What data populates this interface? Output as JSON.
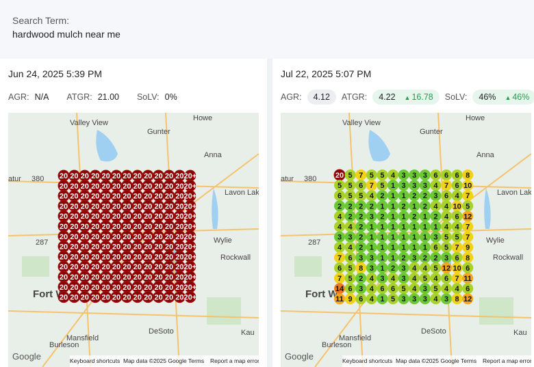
{
  "search": {
    "label": "Search Term:",
    "term": "hardwood mulch near me"
  },
  "panels": [
    {
      "date": "Jun 24, 2025 5:39 PM",
      "metrics": {
        "agr_label": "AGR:",
        "agr": "N/A",
        "atgr_label": "ATGR:",
        "atgr": "21.00",
        "solv_label": "SoLV:",
        "solv": "0%"
      },
      "map_labels": [
        "Valley View",
        "Gunter",
        "Howe",
        "Anna",
        "atur",
        "380",
        "Wylie",
        "Rockwall",
        "Fort W",
        "287",
        "Burleson",
        "Mansfield",
        "DeSoto",
        "Kau",
        "Lavon Lake"
      ],
      "footer": {
        "google": "Google",
        "shortcuts": "Keyboard shortcuts",
        "mapdata": "Map data ©2025 Google",
        "terms": "Terms",
        "report": "Report a map error"
      },
      "grid": [
        [
          20,
          20,
          20,
          20,
          20,
          20,
          20,
          20,
          20,
          20,
          20,
          20,
          "20+"
        ],
        [
          20,
          20,
          20,
          20,
          20,
          20,
          20,
          20,
          20,
          20,
          20,
          20,
          "20+"
        ],
        [
          20,
          20,
          20,
          20,
          20,
          20,
          20,
          20,
          20,
          20,
          20,
          20,
          "20+"
        ],
        [
          20,
          20,
          20,
          20,
          20,
          20,
          20,
          20,
          20,
          20,
          20,
          20,
          "20+"
        ],
        [
          20,
          20,
          20,
          20,
          20,
          20,
          20,
          20,
          20,
          20,
          20,
          20,
          "20+"
        ],
        [
          20,
          20,
          20,
          20,
          20,
          20,
          20,
          20,
          20,
          20,
          20,
          20,
          "20+"
        ],
        [
          20,
          20,
          20,
          20,
          20,
          20,
          20,
          20,
          20,
          20,
          20,
          20,
          "20+"
        ],
        [
          20,
          20,
          20,
          20,
          20,
          20,
          20,
          20,
          20,
          20,
          20,
          20,
          "20+"
        ],
        [
          20,
          20,
          20,
          20,
          20,
          20,
          20,
          20,
          20,
          20,
          20,
          20,
          "20+"
        ],
        [
          20,
          20,
          20,
          20,
          20,
          20,
          20,
          20,
          20,
          20,
          20,
          20,
          "20+"
        ],
        [
          20,
          20,
          20,
          20,
          20,
          20,
          20,
          20,
          20,
          20,
          20,
          20,
          "20+"
        ],
        [
          20,
          20,
          20,
          20,
          20,
          20,
          20,
          20,
          20,
          20,
          20,
          20,
          "20+"
        ],
        [
          20,
          20,
          20,
          20,
          20,
          20,
          20,
          20,
          20,
          20,
          20,
          20,
          "20+"
        ]
      ]
    },
    {
      "date": "Jul 22, 2025 5:07 PM",
      "metrics": {
        "agr_label": "AGR:",
        "agr": "4.12",
        "atgr_label": "ATGR:",
        "atgr": "4.22",
        "atgr_change": "16.78",
        "solv_label": "SoLV:",
        "solv": "46%",
        "solv_change": "46%"
      },
      "map_labels": [
        "Valley View",
        "Gunter",
        "Howe",
        "Anna",
        "atur",
        "380",
        "Wylie",
        "Rockwall",
        "Fort W",
        "287",
        "Burleson",
        "Mansfield",
        "DeSoto",
        "Kau",
        "Lavon Lake"
      ],
      "footer": {
        "google": "Google",
        "shortcuts": "Keyboard shortcuts",
        "mapdata": "Map data ©2025 Google",
        "terms": "Terms",
        "report": "Report a map error"
      },
      "grid": [
        [
          20,
          5,
          7,
          5,
          5,
          4,
          3,
          3,
          3,
          6,
          6,
          6,
          8
        ],
        [
          5,
          5,
          6,
          7,
          5,
          1,
          3,
          3,
          3,
          4,
          7,
          6,
          10
        ],
        [
          6,
          5,
          5,
          4,
          2,
          1,
          1,
          2,
          2,
          3,
          6,
          4,
          7
        ],
        [
          2,
          2,
          2,
          2,
          1,
          1,
          2,
          1,
          2,
          4,
          4,
          10,
          5
        ],
        [
          4,
          2,
          2,
          3,
          2,
          1,
          1,
          2,
          1,
          2,
          4,
          6,
          12
        ],
        [
          4,
          4,
          2,
          1,
          1,
          1,
          1,
          1,
          1,
          1,
          4,
          4,
          7
        ],
        [
          3,
          3,
          2,
          1,
          1,
          1,
          1,
          1,
          1,
          3,
          5,
          5,
          7
        ],
        [
          4,
          4,
          2,
          1,
          1,
          1,
          1,
          1,
          1,
          6,
          5,
          7,
          9
        ],
        [
          7,
          6,
          3,
          3,
          1,
          1,
          2,
          3,
          2,
          2,
          3,
          6,
          8
        ],
        [
          6,
          5,
          8,
          3,
          1,
          2,
          3,
          4,
          4,
          5,
          12,
          10,
          6
        ],
        [
          7,
          5,
          2,
          4,
          3,
          4,
          3,
          4,
          5,
          4,
          6,
          7,
          11
        ],
        [
          14,
          6,
          3,
          4,
          6,
          6,
          5,
          4,
          3,
          5,
          4,
          4,
          6
        ],
        [
          11,
          9,
          6,
          4,
          1,
          5,
          3,
          3,
          3,
          4,
          3,
          8,
          12
        ]
      ]
    }
  ]
}
